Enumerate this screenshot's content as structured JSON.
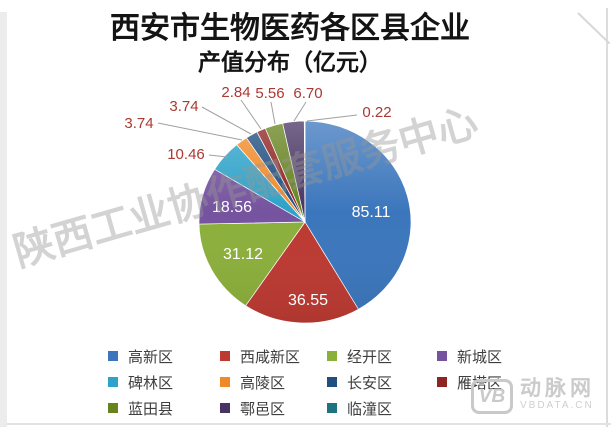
{
  "title": {
    "line1": "西安市生物医药各区县企业",
    "line2": "产值分布（亿元）"
  },
  "chart_data": {
    "type": "pie",
    "title": "西安市生物医药各区县企业产值分布（亿元）",
    "unit": "亿元",
    "categories": [
      "高新区",
      "西咸新区",
      "经开区",
      "新城区",
      "碑林区",
      "高陵区",
      "长安区",
      "雁塔区",
      "蓝田县",
      "鄠邑区",
      "临潼区"
    ],
    "values": [
      85.11,
      36.55,
      31.12,
      18.56,
      10.46,
      3.74,
      3.74,
      2.84,
      5.56,
      6.7,
      0.22
    ],
    "value_labels": [
      "85.11",
      "36.55",
      "31.12",
      "18.56",
      "10.46",
      "3.74",
      "3.74",
      "2.84",
      "5.56",
      "6.70",
      "0.22"
    ],
    "colors": [
      "#3B76BC",
      "#BC3A32",
      "#8BAF3B",
      "#75539F",
      "#2EA2C8",
      "#F08A28",
      "#1F4E80",
      "#8E2522",
      "#66831F",
      "#483463",
      "#1D7380"
    ],
    "start_angle_deg": 0,
    "direction": "clockwise",
    "legend_position": "bottom",
    "inside_label_color": "#FFFFFF",
    "outside_label_color": "#AC3832",
    "leader_line_color": "#A0A0A0"
  },
  "watermarks": {
    "diagonal_text": "陕西工业协作配套服务中心",
    "logo": {
      "mark": "VB",
      "name": "动脉网",
      "site": "VBDATA.CN"
    }
  }
}
